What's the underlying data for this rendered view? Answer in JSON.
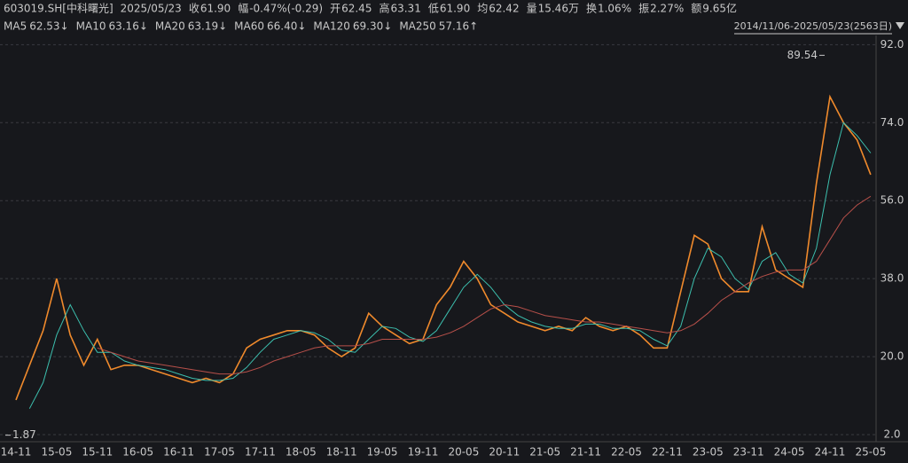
{
  "header": {
    "items": [
      {
        "label": "603019.SH[中科曙光]",
        "color": "#d0d0d0"
      },
      {
        "label": "2025/05/23",
        "color": "#d0d0d0"
      },
      {
        "label": "收",
        "color": "#d0d0d0"
      },
      {
        "label": "61.90",
        "color": "#2ecc40"
      },
      {
        "label": "幅",
        "color": "#d0d0d0"
      },
      {
        "label": "-0.47%(-0.29)",
        "color": "#2ecc40"
      },
      {
        "label": "开",
        "color": "#d0d0d0"
      },
      {
        "label": "62.45",
        "color": "#ff4040"
      },
      {
        "label": "高",
        "color": "#d0d0d0"
      },
      {
        "label": "63.31",
        "color": "#ff4040"
      },
      {
        "label": "低",
        "color": "#d0d0d0"
      },
      {
        "label": "61.90",
        "color": "#2ecc40"
      },
      {
        "label": "均",
        "color": "#d0d0d0"
      },
      {
        "label": "62.42",
        "color": "#ff4040"
      },
      {
        "label": "量",
        "color": "#d0d0d0"
      },
      {
        "label": "15.46万",
        "color": "#d0d0d0"
      },
      {
        "label": "换",
        "color": "#d0d0d0"
      },
      {
        "label": "1.06%",
        "color": "#d0d0d0"
      },
      {
        "label": "振",
        "color": "#d0d0d0"
      },
      {
        "label": "2.27%",
        "color": "#d0d0d0"
      },
      {
        "label": "额",
        "color": "#d0d0d0"
      },
      {
        "label": "9.65亿",
        "color": "#d0d0d0"
      }
    ],
    "ma_row": [
      {
        "name": "MA5",
        "value": 62.53,
        "label": "62.53↓",
        "color": "#ff9a2e"
      },
      {
        "name": "MA10",
        "value": 63.16,
        "label": "63.16↓",
        "color": "#f5e130"
      },
      {
        "name": "MA20",
        "value": 63.19,
        "label": "63.19↓",
        "color": "#e040e0"
      },
      {
        "name": "MA60",
        "value": 66.4,
        "label": "66.40↓",
        "color": "#3cc43c"
      },
      {
        "name": "MA120",
        "value": 69.3,
        "label": "69.30↓",
        "color": "#4fd2e8"
      },
      {
        "name": "MA250",
        "value": 57.16,
        "label": "57.16↑",
        "color": "#ff5a5a"
      }
    ],
    "range": "2014/11/06-2025/05/23(2563日)"
  },
  "chart_data": {
    "type": "line",
    "categories": [
      "14-11",
      null,
      null,
      "15-05",
      null,
      null,
      "15-11",
      null,
      null,
      "16-05",
      null,
      null,
      "16-11",
      null,
      null,
      "17-05",
      null,
      null,
      "17-11",
      null,
      null,
      "18-05",
      null,
      null,
      "18-11",
      null,
      null,
      "19-05",
      null,
      null,
      "19-11",
      null,
      null,
      "20-05",
      null,
      null,
      "20-11",
      null,
      null,
      "21-05",
      null,
      null,
      "21-11",
      null,
      null,
      "22-05",
      null,
      null,
      "22-11",
      null,
      null,
      "23-05",
      null,
      null,
      "23-11",
      null,
      null,
      "24-05",
      null,
      null,
      "24-11",
      null,
      null,
      "25-05"
    ],
    "series": [
      {
        "color": "#f08a2c",
        "values": [
          10,
          18,
          26,
          38,
          25,
          18,
          24,
          17,
          18,
          18,
          17,
          16,
          15,
          14,
          15,
          14,
          16,
          22,
          24,
          25,
          26,
          26,
          25,
          22,
          20,
          22,
          30,
          27,
          25,
          23,
          24,
          32,
          36,
          42,
          38,
          32,
          30,
          28,
          27,
          26,
          27,
          26,
          29,
          27,
          26,
          27,
          25,
          22,
          22,
          35,
          48,
          46,
          38,
          35,
          35,
          50,
          40,
          38,
          36,
          60,
          80,
          74,
          70,
          62
        ]
      },
      {
        "color": "#3cbfae",
        "values": [
          null,
          8,
          14,
          25,
          32,
          26,
          21,
          21,
          19,
          18,
          17.5,
          17,
          16,
          15,
          14.5,
          14.5,
          15,
          17.5,
          21,
          24,
          25,
          26,
          25.5,
          24,
          21.5,
          21,
          24,
          27,
          26.5,
          24.5,
          23.5,
          26,
          31,
          36,
          39,
          36,
          32,
          29.5,
          28,
          27,
          26.5,
          26.5,
          27.5,
          27.5,
          26.5,
          26.5,
          26,
          24,
          22.5,
          27,
          38,
          45,
          43,
          38,
          35.5,
          42,
          44,
          39,
          37,
          45,
          62,
          74,
          71,
          67
        ]
      },
      {
        "color": "#b8504a",
        "values": [
          null,
          null,
          null,
          null,
          null,
          null,
          22,
          21,
          20,
          19,
          18.5,
          18,
          17.5,
          17,
          16.5,
          16,
          16,
          16.5,
          17.5,
          19,
          20,
          21,
          22,
          22.5,
          22.5,
          22.5,
          23,
          24,
          24,
          24,
          24,
          24.5,
          25.5,
          27,
          29,
          31,
          32,
          31.5,
          30.5,
          29.5,
          29,
          28.5,
          28,
          28,
          27.5,
          27,
          26.5,
          26,
          25.5,
          26,
          27.5,
          30,
          33,
          35,
          37,
          38.5,
          39.5,
          40,
          40,
          42,
          47,
          52,
          55,
          57
        ]
      }
    ],
    "annotations": [
      89.54,
      1.87
    ],
    "ylim": [
      -2.5,
      93.5
    ],
    "yticks": [
      {
        "value": 92,
        "label": "92.0"
      },
      {
        "value": 74,
        "label": "74.0"
      },
      {
        "value": 56,
        "label": "56.0"
      },
      {
        "value": 38,
        "label": "38.0"
      },
      {
        "value": 20,
        "label": "20.0"
      },
      {
        "value": 2,
        "label": "2.0"
      }
    ],
    "grid": true
  }
}
